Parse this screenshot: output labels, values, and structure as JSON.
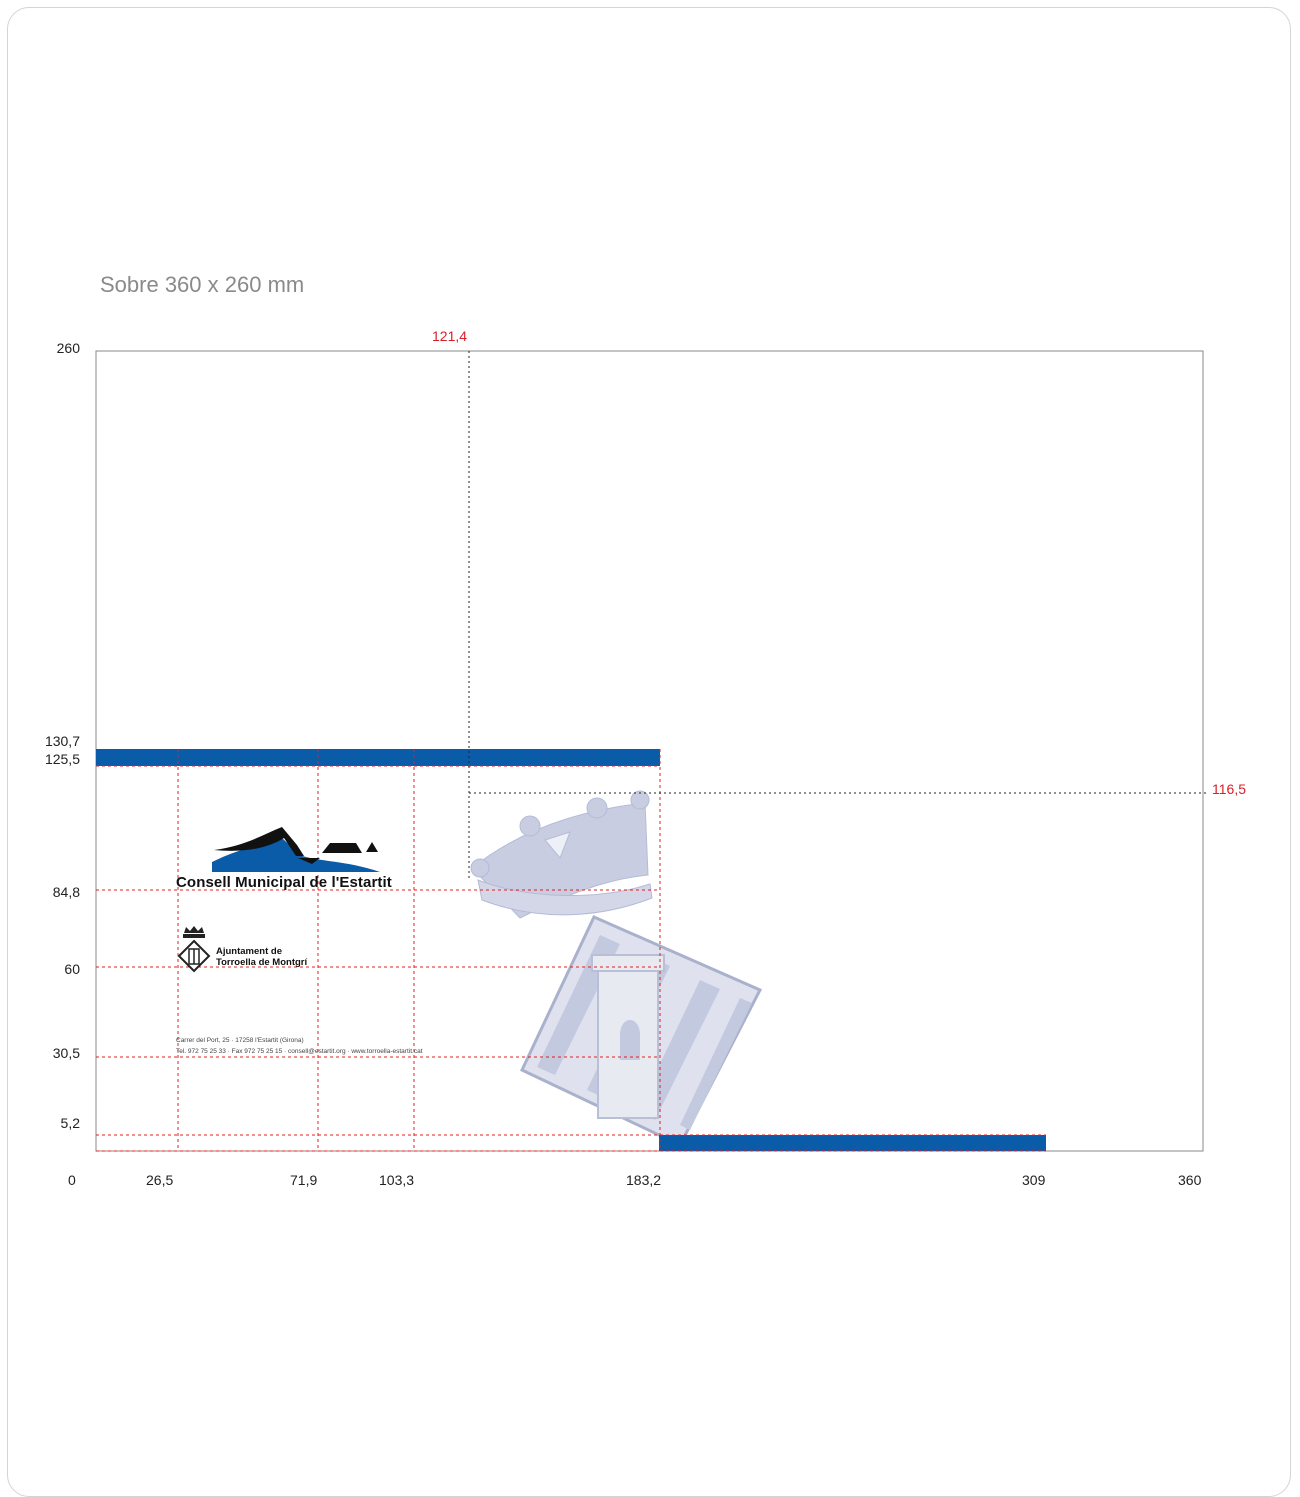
{
  "title": "Sobre 360 x 260 mm",
  "axis_y": {
    "top": "260",
    "bottom": "0"
  },
  "axis_x": {
    "right": "360"
  },
  "y_marks": [
    "130,7",
    "125,5",
    "84,8",
    "60",
    "30,5",
    "5,2"
  ],
  "x_marks": [
    "26,5",
    "71,9",
    "103,3",
    "183,2",
    "309"
  ],
  "red_marks": {
    "top": "121,4",
    "right": "116,5"
  },
  "logo": {
    "name": "Consell Municipal de l'Estartit"
  },
  "ajuntament": {
    "line1": "Ajuntament de",
    "line2": "Torroella de Montgrí"
  },
  "address": {
    "line1": "Carrer del Port, 25 · 17258 l'Estartit (Girona)",
    "line2": "Tel. 972 75 25 33 · Fax 972 75 25 15 · consell@estartit.org · www.torroella-estartit.cat"
  },
  "colors": {
    "band": "#0a5ca8",
    "guide": "#e02020",
    "watermark": "#c5cbe0",
    "frame": "#888888"
  }
}
